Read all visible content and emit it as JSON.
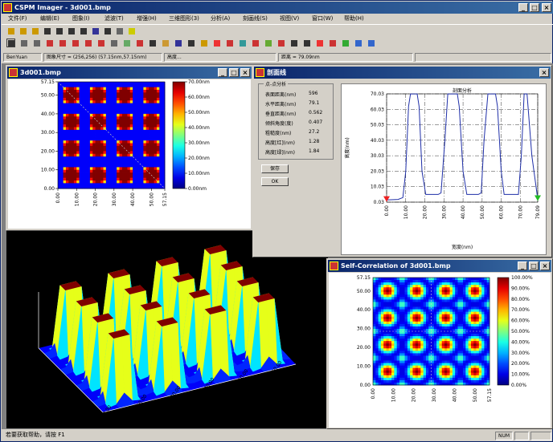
{
  "app": {
    "title": "CSPM Imager - 3d001.bmp"
  },
  "menu": [
    "文件(F)",
    "编辑(E)",
    "图象(I)",
    "滤波(T)",
    "增强(H)",
    "三维图形(3)",
    "分析(A)",
    "刻画线(S)",
    "视图(V)",
    "窗口(W)",
    "帮助(H)"
  ],
  "status_strip": {
    "name": "BenYuan",
    "image_size": "图象尺寸 = (256,256) (57.15nm,57.15nm)",
    "height": "高度...",
    "distance": "距离 = 79.09nm"
  },
  "windows": {
    "image": {
      "title": "3d001.bmp"
    },
    "profile": {
      "title": "剖面线"
    },
    "correlation": {
      "title": "Self-Correlation of 3d001.bmp"
    }
  },
  "image_view": {
    "y_ticks": [
      "57.15",
      "50.00",
      "40.00",
      "30.00",
      "20.00",
      "10.00",
      "0.00"
    ],
    "x_ticks": [
      "0.00",
      "10.00",
      "20.00",
      "30.00",
      "40.00",
      "50.00",
      "57.15"
    ],
    "colorbar": [
      "70.00nm",
      "60.00nm",
      "50.00nm",
      "40.00nm",
      "30.00nm",
      "20.00nm",
      "10.00nm",
      "0.00nm"
    ]
  },
  "profile_panel": {
    "group_title": "点-点分析",
    "rows": [
      {
        "label": "表面距离(nm)",
        "value": "596"
      },
      {
        "label": "水平距离(nm)",
        "value": "79.1"
      },
      {
        "label": "垂直距离(nm)",
        "value": "0.562"
      },
      {
        "label": "倾斜角度(度)",
        "value": "0.407"
      },
      {
        "label": "粗糙度(nm)",
        "value": "27.2"
      },
      {
        "label": "高度[红](nm)",
        "value": "1.28"
      },
      {
        "label": "高度[绿](nm)",
        "value": "1.84"
      }
    ],
    "save_label": "保存",
    "ok_label": "OK"
  },
  "chart_data": {
    "type": "line",
    "title": "剖面分析",
    "xlabel": "宽度(nm)",
    "ylabel": "高度(nm)",
    "y_ticks": [
      "70.03",
      "60.03",
      "50.03",
      "40.03",
      "30.03",
      "20.03",
      "10.03",
      "0.03"
    ],
    "x_ticks": [
      "0.00",
      "10.00",
      "20.00",
      "30.00",
      "40.00",
      "50.00",
      "60.00",
      "70.00",
      "79.09"
    ],
    "xlim": [
      0,
      79.09
    ],
    "ylim": [
      0.03,
      70.03
    ],
    "x": [
      0,
      6,
      8.5,
      10,
      11.5,
      12.5,
      16,
      17,
      18.5,
      20.5,
      27,
      28.5,
      30.5,
      32,
      34,
      37,
      38,
      40,
      42,
      48,
      49.5,
      51,
      53,
      54,
      57,
      58,
      60,
      61.5,
      69,
      70.5,
      72,
      73.5,
      76,
      79.09
    ],
    "y": [
      1.5,
      1.8,
      3,
      20,
      62,
      70,
      70,
      62,
      20,
      5,
      5,
      6,
      40,
      70,
      70,
      70,
      62,
      20,
      5,
      5,
      6,
      40,
      70,
      70,
      70,
      62,
      20,
      5,
      5,
      30,
      70,
      70,
      30,
      2
    ],
    "markers": [
      {
        "name": "red",
        "x": 0,
        "y": 1.28
      },
      {
        "name": "green",
        "x": 79.09,
        "y": 1.84
      }
    ]
  },
  "view3d": {
    "z_ticks": [
      "60.00",
      "40.00",
      "20.00",
      "0.00"
    ],
    "x_ticks": [
      "0.00",
      "10.00",
      "20.00",
      "30.00",
      "40.00",
      "50.00",
      "57.15"
    ],
    "y_ticks": [
      "0.00",
      "10.00",
      "20.00",
      "30.00",
      "40.00",
      "50.00",
      "57.15"
    ]
  },
  "correlation_view": {
    "y_ticks": [
      "57.15",
      "50.00",
      "40.00",
      "30.00",
      "20.00",
      "10.00",
      "0.00"
    ],
    "x_ticks": [
      "0.00",
      "10.00",
      "20.00",
      "30.00",
      "40.00",
      "50.00",
      "57.15"
    ],
    "colorbar": [
      "100.00%",
      "90.00%",
      "80.00%",
      "70.00%",
      "60.00%",
      "50.00%",
      "40.00%",
      "30.00%",
      "20.00%",
      "10.00%",
      "0.00%"
    ]
  },
  "statusbar": {
    "hint": "若要获取帮助，请按 F1",
    "num": "NUM"
  }
}
